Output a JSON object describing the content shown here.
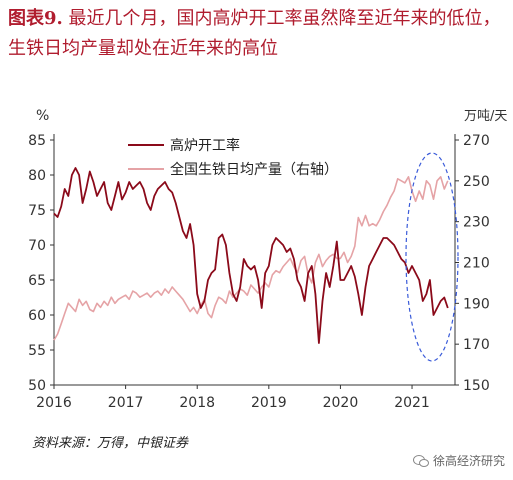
{
  "title": {
    "prefix": "图表9.",
    "text": "最近几个月，国内高炉开工率虽然降至近年来的低位，生铁日均产量却处在近年来的高位"
  },
  "source": "资料来源：万得，中银证券",
  "watermark": "徐高经济研究",
  "chart_data": {
    "type": "line",
    "left_unit": "%",
    "right_unit": "万吨/天",
    "x_ticks": [
      "2016",
      "2017",
      "2018",
      "2019",
      "2020",
      "2021"
    ],
    "xlim": [
      2016.0,
      2021.6
    ],
    "left_ylim": [
      50,
      85
    ],
    "left_ticks": [
      50,
      55,
      60,
      65,
      70,
      75,
      80,
      85
    ],
    "right_ylim": [
      150,
      270
    ],
    "right_ticks": [
      150,
      170,
      190,
      210,
      230,
      250,
      270
    ],
    "grid": false,
    "legend_position": "top-center",
    "annotation": "dashed blue ellipse highlighting 2021",
    "series": [
      {
        "name": "高炉开工率",
        "axis": "left",
        "color": "#8b0a1a",
        "x": [
          2016.0,
          2016.05,
          2016.1,
          2016.15,
          2016.2,
          2016.25,
          2016.3,
          2016.35,
          2016.4,
          2016.45,
          2016.5,
          2016.55,
          2016.6,
          2016.65,
          2016.7,
          2016.75,
          2016.8,
          2016.85,
          2016.9,
          2016.95,
          2017.0,
          2017.05,
          2017.1,
          2017.15,
          2017.2,
          2017.25,
          2017.3,
          2017.35,
          2017.4,
          2017.45,
          2017.5,
          2017.55,
          2017.6,
          2017.65,
          2017.7,
          2017.75,
          2017.8,
          2017.85,
          2017.9,
          2017.95,
          2018.0,
          2018.05,
          2018.1,
          2018.15,
          2018.2,
          2018.25,
          2018.3,
          2018.35,
          2018.4,
          2018.45,
          2018.5,
          2018.55,
          2018.6,
          2018.65,
          2018.7,
          2018.75,
          2018.8,
          2018.85,
          2018.9,
          2018.95,
          2019.0,
          2019.05,
          2019.1,
          2019.15,
          2019.2,
          2019.25,
          2019.3,
          2019.35,
          2019.4,
          2019.45,
          2019.5,
          2019.55,
          2019.6,
          2019.65,
          2019.7,
          2019.75,
          2019.8,
          2019.85,
          2019.9,
          2019.95,
          2020.0,
          2020.05,
          2020.1,
          2020.15,
          2020.2,
          2020.25,
          2020.3,
          2020.35,
          2020.4,
          2020.45,
          2020.5,
          2020.55,
          2020.6,
          2020.65,
          2020.7,
          2020.75,
          2020.8,
          2020.85,
          2020.9,
          2020.95,
          2021.0,
          2021.05,
          2021.1,
          2021.15,
          2021.2,
          2021.25,
          2021.3,
          2021.35,
          2021.4,
          2021.45,
          2021.5
        ],
        "values": [
          74.5,
          74,
          75.5,
          78,
          77,
          80,
          81,
          80,
          76,
          78,
          80.5,
          79,
          77,
          78,
          79,
          76,
          75,
          77,
          79,
          76.5,
          77.5,
          79,
          78,
          78.5,
          79,
          78,
          76,
          75,
          77,
          78,
          78.5,
          79,
          78,
          77.5,
          76,
          74,
          72,
          71,
          73,
          70,
          63,
          61,
          62,
          65,
          66,
          66.5,
          71,
          71.5,
          70,
          66,
          63,
          62,
          64,
          68,
          67,
          66.5,
          67,
          65,
          61,
          66,
          67,
          70,
          71,
          70.5,
          70,
          69,
          69.5,
          68,
          65,
          64,
          62,
          66,
          67,
          63,
          56,
          62,
          66,
          64,
          67,
          70.5,
          65,
          65,
          66,
          67,
          65.5,
          63,
          60,
          64,
          67,
          68,
          69,
          70,
          71,
          71,
          70.5,
          70,
          69,
          68,
          67.5,
          66,
          67,
          66,
          65,
          62,
          63,
          65,
          60,
          61,
          62,
          62.5,
          61
        ]
      },
      {
        "name": "全国生铁日均产量（右轴）",
        "axis": "right",
        "color": "#e5a3a6",
        "x": [
          2016.0,
          2016.05,
          2016.1,
          2016.15,
          2016.2,
          2016.25,
          2016.3,
          2016.35,
          2016.4,
          2016.45,
          2016.5,
          2016.55,
          2016.6,
          2016.65,
          2016.7,
          2016.75,
          2016.8,
          2016.85,
          2016.9,
          2016.95,
          2017.0,
          2017.05,
          2017.1,
          2017.15,
          2017.2,
          2017.25,
          2017.3,
          2017.35,
          2017.4,
          2017.45,
          2017.5,
          2017.55,
          2017.6,
          2017.65,
          2017.7,
          2017.75,
          2017.8,
          2017.85,
          2017.9,
          2017.95,
          2018.0,
          2018.05,
          2018.1,
          2018.15,
          2018.2,
          2018.25,
          2018.3,
          2018.35,
          2018.4,
          2018.45,
          2018.5,
          2018.55,
          2018.6,
          2018.65,
          2018.7,
          2018.75,
          2018.8,
          2018.85,
          2018.9,
          2018.95,
          2019.0,
          2019.05,
          2019.1,
          2019.15,
          2019.2,
          2019.25,
          2019.3,
          2019.35,
          2019.4,
          2019.45,
          2019.5,
          2019.55,
          2019.6,
          2019.65,
          2019.7,
          2019.75,
          2019.8,
          2019.85,
          2019.9,
          2019.95,
          2020.0,
          2020.05,
          2020.1,
          2020.15,
          2020.2,
          2020.25,
          2020.3,
          2020.35,
          2020.4,
          2020.45,
          2020.5,
          2020.55,
          2020.6,
          2020.65,
          2020.7,
          2020.75,
          2020.8,
          2020.85,
          2020.9,
          2020.95,
          2021.0,
          2021.05,
          2021.1,
          2021.15,
          2021.2,
          2021.25,
          2021.3,
          2021.35,
          2021.4,
          2021.45,
          2021.5
        ],
        "values": [
          172,
          175,
          180,
          185,
          190,
          188,
          186,
          192,
          189,
          191,
          187,
          186,
          190,
          188,
          191,
          189,
          193,
          190,
          192,
          193,
          194,
          192,
          196,
          195,
          193,
          194,
          195,
          193,
          195,
          196,
          194,
          197,
          195,
          198,
          196,
          194,
          192,
          189,
          186,
          188,
          185,
          189,
          192,
          185,
          183,
          189,
          193,
          192,
          190,
          196,
          193,
          195,
          197,
          196,
          194,
          199,
          197,
          195,
          198,
          200,
          198,
          204,
          206,
          205,
          208,
          210,
          212,
          208,
          205,
          211,
          213,
          204,
          200,
          210,
          214,
          208,
          211,
          213,
          214,
          212,
          212,
          215,
          210,
          213,
          218,
          232,
          228,
          233,
          228,
          229,
          228,
          231,
          235,
          238,
          242,
          245,
          251,
          250,
          249,
          252,
          245,
          240,
          245,
          241,
          250,
          248,
          241,
          250,
          252,
          246,
          250
        ]
      }
    ]
  }
}
